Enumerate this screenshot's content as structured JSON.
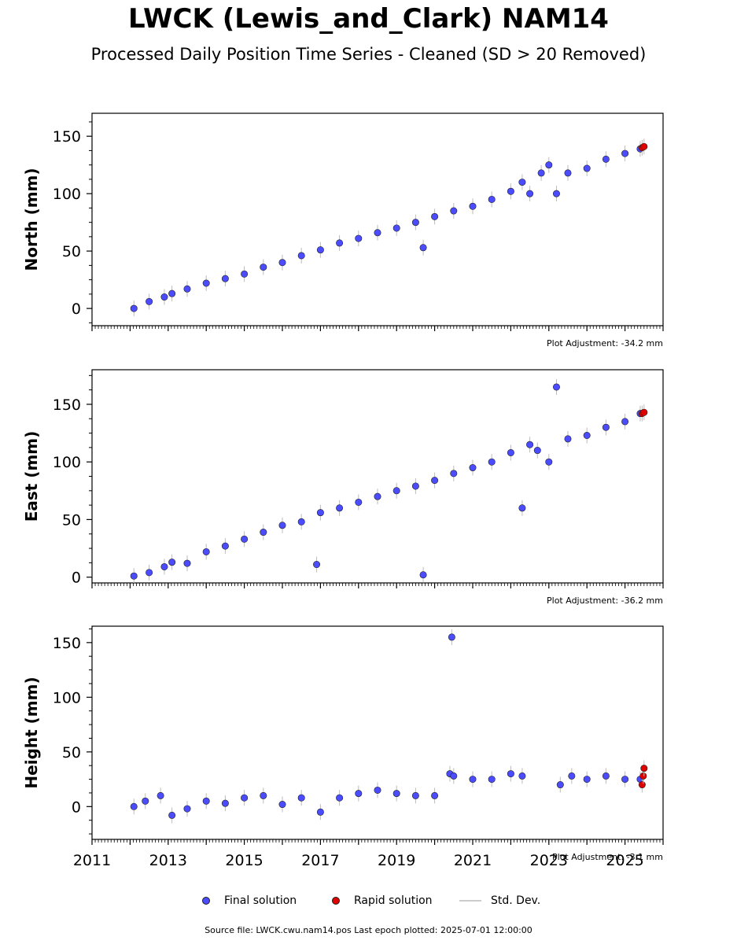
{
  "header": {
    "title": "LWCK (Lewis_and_Clark) NAM14",
    "subtitle": "Processed Daily Position Time Series - Cleaned (SD > 20 Removed)"
  },
  "legend": {
    "final": "Final solution",
    "rapid": "Rapid solution",
    "std": "Std. Dev."
  },
  "footer": {
    "source": "Source file: LWCK.cwu.nam14.pos  Last epoch plotted: 2025-07-01 12:00:00"
  },
  "colors": {
    "final": "#4b4bff",
    "rapid": "#e00000",
    "std": "#bbbbbb"
  },
  "chart_data": [
    {
      "type": "scatter",
      "ylabel": "North (mm)",
      "adjustment": "Plot Adjustment: -34.2 mm",
      "xlim": [
        2011,
        2026
      ],
      "ylim": [
        -15,
        170
      ],
      "yticks": [
        0,
        50,
        100,
        150
      ],
      "series": [
        {
          "name": "Final solution",
          "x": [
            2012.1,
            2012.5,
            2012.9,
            2013.1,
            2013.5,
            2014.0,
            2014.5,
            2015.0,
            2015.5,
            2016.0,
            2016.5,
            2017.0,
            2017.5,
            2018.0,
            2018.5,
            2019.0,
            2019.5,
            2019.7,
            2020.0,
            2020.5,
            2021.0,
            2021.5,
            2022.0,
            2022.3,
            2022.5,
            2022.8,
            2023.0,
            2023.2,
            2023.5,
            2024.0,
            2024.5,
            2025.0,
            2025.4
          ],
          "y": [
            0,
            6,
            10,
            13,
            17,
            22,
            26,
            30,
            36,
            40,
            46,
            51,
            57,
            61,
            66,
            70,
            75,
            53,
            80,
            85,
            89,
            95,
            102,
            110,
            100,
            118,
            125,
            100,
            118,
            122,
            130,
            135,
            139
          ]
        },
        {
          "name": "Rapid solution",
          "x": [
            2025.45,
            2025.5
          ],
          "y": [
            140,
            141
          ]
        }
      ]
    },
    {
      "type": "scatter",
      "ylabel": "East (mm)",
      "adjustment": "Plot Adjustment: -36.2 mm",
      "xlim": [
        2011,
        2026
      ],
      "ylim": [
        -5,
        180
      ],
      "yticks": [
        0,
        50,
        100,
        150
      ],
      "series": [
        {
          "name": "Final solution",
          "x": [
            2012.1,
            2012.5,
            2012.9,
            2013.1,
            2013.5,
            2014.0,
            2014.5,
            2015.0,
            2015.5,
            2016.0,
            2016.5,
            2016.9,
            2017.0,
            2017.5,
            2018.0,
            2018.5,
            2019.0,
            2019.5,
            2019.7,
            2020.0,
            2020.5,
            2021.0,
            2021.5,
            2022.0,
            2022.3,
            2022.5,
            2022.7,
            2023.0,
            2023.2,
            2023.5,
            2024.0,
            2024.5,
            2025.0,
            2025.4
          ],
          "y": [
            1,
            4,
            9,
            13,
            12,
            22,
            27,
            33,
            39,
            45,
            48,
            11,
            56,
            60,
            65,
            70,
            75,
            79,
            2,
            84,
            90,
            95,
            100,
            108,
            60,
            115,
            110,
            100,
            165,
            120,
            123,
            130,
            135,
            142
          ]
        },
        {
          "name": "Rapid solution",
          "x": [
            2025.45,
            2025.5
          ],
          "y": [
            142,
            143
          ]
        }
      ]
    },
    {
      "type": "scatter",
      "ylabel": "Height (mm)",
      "adjustment": "Plot Adjustment: -3.1 mm",
      "xlim": [
        2011,
        2026
      ],
      "xticks": [
        2011,
        2013,
        2015,
        2017,
        2019,
        2021,
        2023,
        2025
      ],
      "ylim": [
        -30,
        165
      ],
      "yticks": [
        0,
        50,
        100,
        150
      ],
      "series": [
        {
          "name": "Final solution",
          "x": [
            2012.1,
            2012.4,
            2012.8,
            2013.1,
            2013.5,
            2014.0,
            2014.5,
            2015.0,
            2015.5,
            2016.0,
            2016.5,
            2017.0,
            2017.5,
            2018.0,
            2018.5,
            2019.0,
            2019.5,
            2020.0,
            2020.4,
            2020.45,
            2020.5,
            2021.0,
            2021.5,
            2022.0,
            2022.3,
            2023.3,
            2023.6,
            2024.0,
            2024.5,
            2025.0,
            2025.4
          ],
          "y": [
            0,
            5,
            10,
            -8,
            -2,
            5,
            3,
            8,
            10,
            2,
            8,
            -5,
            8,
            12,
            15,
            12,
            10,
            10,
            30,
            155,
            28,
            25,
            25,
            30,
            28,
            20,
            28,
            25,
            28,
            25,
            25
          ]
        },
        {
          "name": "Rapid solution",
          "x": [
            2025.45,
            2025.48,
            2025.5
          ],
          "y": [
            20,
            28,
            35
          ]
        }
      ]
    }
  ]
}
